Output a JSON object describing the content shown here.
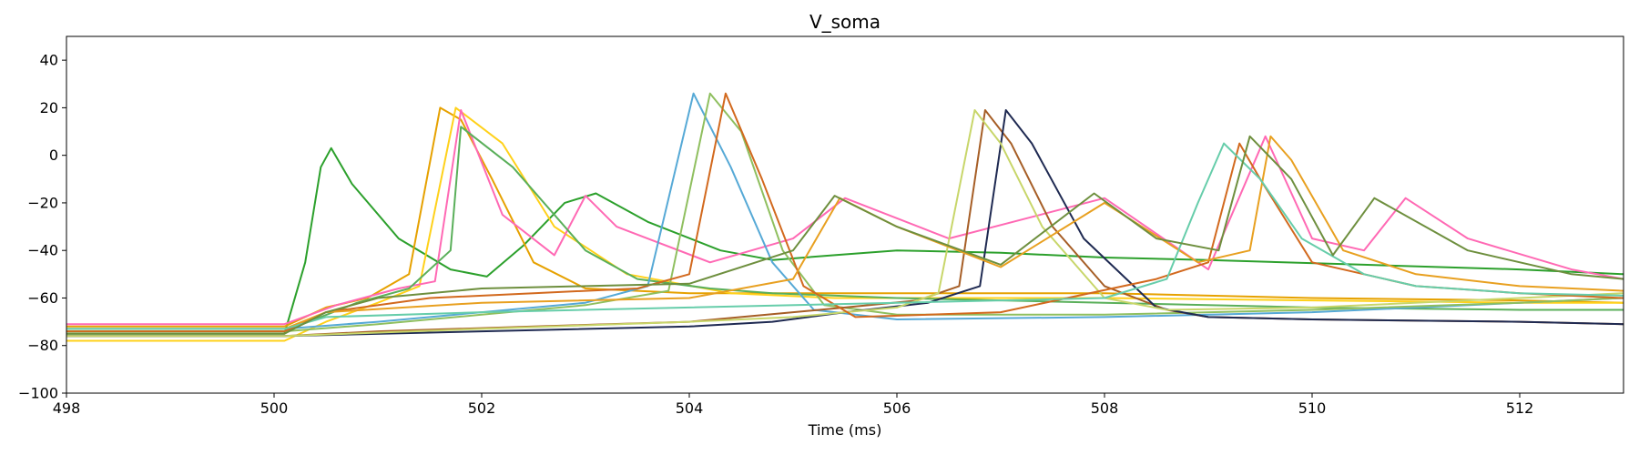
{
  "chart_data": {
    "type": "line",
    "title": "V_soma",
    "xlabel": "Time (ms)",
    "ylabel": "",
    "xlim": [
      498,
      513
    ],
    "ylim": [
      -100,
      50
    ],
    "xticks": [
      498,
      500,
      502,
      504,
      506,
      508,
      510,
      512
    ],
    "yticks": [
      -100,
      -80,
      -60,
      -40,
      -20,
      0,
      20,
      40
    ],
    "grid": false,
    "legend": "none",
    "series": [
      {
        "color": "#2ca02c",
        "x": [
          498,
          500.1,
          500.3,
          500.45,
          500.55,
          500.75,
          501.2,
          501.7,
          502.05,
          502.4,
          502.8,
          503.1,
          503.6,
          504.3,
          504.8,
          505.4,
          506,
          507,
          508,
          509,
          510.5,
          512,
          513
        ],
        "y": [
          -75,
          -75,
          -45,
          -5,
          3,
          -12,
          -35,
          -48,
          -51,
          -38,
          -20,
          -16,
          -28,
          -40,
          -44,
          -42,
          -40,
          -41,
          -43,
          -44,
          -46,
          -48,
          -50
        ]
      },
      {
        "color": "#e6a100",
        "x": [
          498,
          500.1,
          500.5,
          500.9,
          501.3,
          501.6,
          501.8,
          502.1,
          502.5,
          503,
          504,
          505,
          506,
          508,
          510,
          512,
          513
        ],
        "y": [
          -72,
          -72,
          -64,
          -60,
          -50,
          20,
          15,
          -10,
          -45,
          -56,
          -58,
          -58,
          -58,
          -58,
          -60,
          -61,
          -62
        ]
      },
      {
        "color": "#ffd11a",
        "x": [
          498,
          500.1,
          500.5,
          501,
          501.4,
          501.75,
          502.2,
          502.7,
          503.4,
          504.4,
          505.4,
          506.5,
          508,
          510,
          512,
          513
        ],
        "y": [
          -78,
          -78,
          -70,
          -62,
          -55,
          20,
          5,
          -30,
          -50,
          -58,
          -60,
          -60,
          -60,
          -61,
          -62,
          -62
        ]
      },
      {
        "color": "#ff69b4",
        "x": [
          498,
          500.1,
          500.6,
          501.2,
          501.55,
          501.8,
          502.2,
          502.7,
          503,
          503.3,
          504.2,
          505,
          505.5,
          506.5,
          508,
          509,
          509.55,
          510,
          510.5,
          510.9,
          511.5,
          512.5,
          513
        ],
        "y": [
          -71,
          -71,
          -63,
          -56,
          -53,
          19,
          -25,
          -42,
          -17,
          -30,
          -45,
          -35,
          -18,
          -35,
          -18,
          -48,
          8,
          -35,
          -40,
          -18,
          -35,
          -48,
          -52
        ]
      },
      {
        "color": "#5aaf5a",
        "x": [
          498,
          500.1,
          500.8,
          501.3,
          501.7,
          501.8,
          502.3,
          503,
          503.5,
          504.2,
          504.8,
          506,
          508,
          510,
          512,
          513
        ],
        "y": [
          -74,
          -74,
          -62,
          -56,
          -40,
          12,
          -5,
          -40,
          -52,
          -56,
          -58,
          -60,
          -62,
          -64,
          -65,
          -65
        ]
      },
      {
        "color": "#56a9d6",
        "x": [
          498,
          500.1,
          501,
          502,
          503,
          503.6,
          504.04,
          504.4,
          504.8,
          505.2,
          506,
          508,
          510,
          512,
          513
        ],
        "y": [
          -73,
          -73,
          -70,
          -66,
          -62,
          -55,
          26,
          -5,
          -45,
          -65,
          -69,
          -68,
          -66,
          -62,
          -60
        ]
      },
      {
        "color": "#8fbf5f",
        "x": [
          498,
          500.1,
          501,
          502,
          503,
          503.8,
          504.2,
          504.5,
          504.9,
          505.3,
          506,
          508,
          510,
          512,
          513
        ],
        "y": [
          -74,
          -74,
          -71,
          -67,
          -63,
          -57,
          26,
          10,
          -40,
          -63,
          -67,
          -67,
          -65,
          -62,
          -60
        ]
      },
      {
        "color": "#a65e26",
        "x": [
          498,
          500.1,
          501,
          502.5,
          504,
          505,
          505.5,
          506.2,
          506.6,
          506.85,
          507.1,
          507.5,
          508,
          508.6,
          509,
          510,
          512,
          513
        ],
        "y": [
          -76,
          -76,
          -74,
          -72,
          -70,
          -66,
          -64,
          -61,
          -55,
          19,
          5,
          -30,
          -55,
          -65,
          -68,
          -69,
          -70,
          -71
        ]
      },
      {
        "color": "#1f2a52",
        "x": [
          498,
          500.1,
          502,
          504,
          504.8,
          505.5,
          506.3,
          506.8,
          507.05,
          507.3,
          507.8,
          508.5,
          509,
          510,
          512,
          513
        ],
        "y": [
          -76,
          -76,
          -74,
          -72,
          -70,
          -66,
          -62,
          -55,
          19,
          5,
          -35,
          -64,
          -68,
          -69,
          -70,
          -71
        ]
      },
      {
        "color": "#c8d66a",
        "x": [
          498,
          500.1,
          502,
          504,
          505,
          506,
          506.4,
          506.75,
          507.0,
          507.4,
          508,
          508.6,
          510,
          512,
          513
        ],
        "y": [
          -76,
          -76,
          -73,
          -70,
          -68,
          -64,
          -58,
          19,
          5,
          -30,
          -60,
          -65,
          -64,
          -60,
          -58
        ]
      },
      {
        "color": "#d2691e",
        "x": [
          498,
          500.1,
          500.5,
          501.5,
          502.5,
          503.5,
          504,
          504.35,
          504.7,
          505.1,
          505.6,
          507,
          508.5,
          509,
          509.3,
          509.5,
          510,
          511,
          512,
          513
        ],
        "y": [
          -74,
          -74,
          -66,
          -60,
          -58,
          -56,
          -50,
          26,
          -10,
          -55,
          -68,
          -66,
          -52,
          -45,
          5,
          -10,
          -45,
          -55,
          -58,
          -60
        ]
      },
      {
        "color": "#e8a020",
        "x": [
          498,
          500.1,
          500.5,
          502,
          504,
          505,
          505.45,
          506,
          507,
          508,
          508.9,
          509.4,
          509.6,
          509.8,
          510.3,
          511,
          512,
          513
        ],
        "y": [
          -73,
          -73,
          -66,
          -62,
          -60,
          -52,
          -18,
          -30,
          -47,
          -20,
          -45,
          -40,
          8,
          -2,
          -40,
          -50,
          -55,
          -57
        ]
      },
      {
        "color": "#66cdaa",
        "x": [
          498,
          500.1,
          500.5,
          502,
          504,
          506,
          508,
          508.6,
          508.9,
          509.15,
          509.5,
          509.9,
          510.5,
          511,
          512,
          513
        ],
        "y": [
          -73,
          -73,
          -68,
          -66,
          -64,
          -62,
          -60,
          -52,
          -20,
          5,
          -10,
          -35,
          -50,
          -55,
          -58,
          -59
        ]
      },
      {
        "color": "#6e8f3e",
        "x": [
          498,
          500.1,
          500.5,
          501,
          502,
          503,
          504,
          505,
          505.4,
          506,
          507,
          507.9,
          508.5,
          509.1,
          509.4,
          509.8,
          510.2,
          510.6,
          511.5,
          512.5,
          513
        ],
        "y": [
          -75,
          -75,
          -66,
          -60,
          -56,
          -55,
          -54,
          -40,
          -17,
          -30,
          -46,
          -16,
          -35,
          -40,
          8,
          -10,
          -42,
          -18,
          -40,
          -50,
          -52
        ]
      }
    ]
  }
}
